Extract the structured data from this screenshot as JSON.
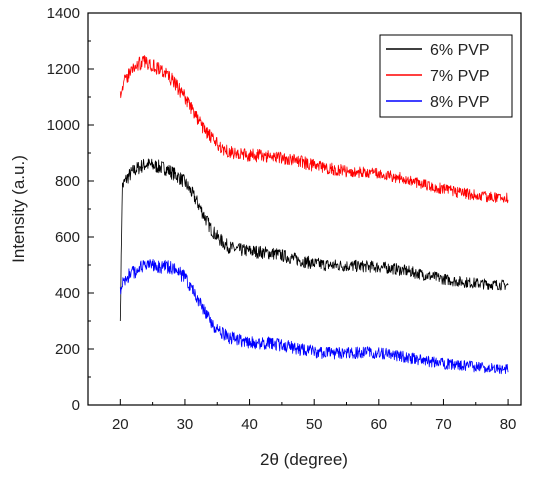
{
  "chart_data": {
    "type": "line",
    "xlabel": "2θ (degree)",
    "ylabel": "Intensity (a.u.)",
    "xlim": [
      15,
      82
    ],
    "ylim": [
      0,
      1400
    ],
    "x_ticks": [
      20,
      30,
      40,
      50,
      60,
      70,
      80
    ],
    "y_ticks": [
      0,
      200,
      400,
      600,
      800,
      1000,
      1200,
      1400
    ],
    "legend_position": "top-right",
    "grid": false,
    "series": [
      {
        "name": "6% PVP",
        "color": "#000000",
        "points": [
          [
            20,
            300
          ],
          [
            20.3,
            780
          ],
          [
            21,
            810
          ],
          [
            22,
            835
          ],
          [
            23,
            850
          ],
          [
            24,
            860
          ],
          [
            25,
            855
          ],
          [
            26,
            850
          ],
          [
            27,
            845
          ],
          [
            28,
            830
          ],
          [
            29,
            815
          ],
          [
            30,
            795
          ],
          [
            31,
            760
          ],
          [
            32,
            720
          ],
          [
            33,
            675
          ],
          [
            34,
            630
          ],
          [
            35,
            600
          ],
          [
            36,
            578
          ],
          [
            37,
            562
          ],
          [
            38,
            555
          ],
          [
            40,
            550
          ],
          [
            42,
            545
          ],
          [
            44,
            540
          ],
          [
            46,
            528
          ],
          [
            48,
            515
          ],
          [
            50,
            505
          ],
          [
            52,
            500
          ],
          [
            55,
            497
          ],
          [
            58,
            495
          ],
          [
            60,
            493
          ],
          [
            62,
            488
          ],
          [
            64,
            480
          ],
          [
            66,
            470
          ],
          [
            68,
            460
          ],
          [
            70,
            450
          ],
          [
            72,
            442
          ],
          [
            74,
            437
          ],
          [
            76,
            433
          ],
          [
            78,
            430
          ],
          [
            80,
            428
          ]
        ]
      },
      {
        "name": "7% PVP",
        "color": "#ff0000",
        "points": [
          [
            20,
            1120
          ],
          [
            21,
            1170
          ],
          [
            22,
            1205
          ],
          [
            23,
            1220
          ],
          [
            24,
            1225
          ],
          [
            25,
            1215
          ],
          [
            26,
            1200
          ],
          [
            27,
            1185
          ],
          [
            28,
            1160
          ],
          [
            29,
            1130
          ],
          [
            30,
            1100
          ],
          [
            31,
            1060
          ],
          [
            32,
            1020
          ],
          [
            33,
            985
          ],
          [
            34,
            955
          ],
          [
            35,
            930
          ],
          [
            36,
            915
          ],
          [
            37,
            905
          ],
          [
            38,
            897
          ],
          [
            40,
            892
          ],
          [
            42,
            890
          ],
          [
            44,
            888
          ],
          [
            46,
            880
          ],
          [
            48,
            868
          ],
          [
            50,
            855
          ],
          [
            52,
            845
          ],
          [
            55,
            835
          ],
          [
            58,
            828
          ],
          [
            60,
            825
          ],
          [
            62,
            818
          ],
          [
            64,
            808
          ],
          [
            66,
            795
          ],
          [
            68,
            782
          ],
          [
            70,
            770
          ],
          [
            72,
            760
          ],
          [
            74,
            752
          ],
          [
            76,
            746
          ],
          [
            78,
            742
          ],
          [
            80,
            738
          ]
        ]
      },
      {
        "name": "8% PVP",
        "color": "#0000ff",
        "points": [
          [
            20,
            420
          ],
          [
            21,
            455
          ],
          [
            22,
            475
          ],
          [
            23,
            488
          ],
          [
            24,
            495
          ],
          [
            25,
            498
          ],
          [
            26,
            496
          ],
          [
            27,
            493
          ],
          [
            28,
            488
          ],
          [
            29,
            475
          ],
          [
            30,
            455
          ],
          [
            31,
            420
          ],
          [
            32,
            380
          ],
          [
            33,
            335
          ],
          [
            34,
            295
          ],
          [
            35,
            268
          ],
          [
            36,
            250
          ],
          [
            37,
            240
          ],
          [
            38,
            232
          ],
          [
            40,
            225
          ],
          [
            42,
            222
          ],
          [
            44,
            218
          ],
          [
            46,
            208
          ],
          [
            48,
            198
          ],
          [
            50,
            190
          ],
          [
            52,
            185
          ],
          [
            55,
            185
          ],
          [
            58,
            188
          ],
          [
            60,
            186
          ],
          [
            62,
            180
          ],
          [
            64,
            172
          ],
          [
            66,
            163
          ],
          [
            68,
            155
          ],
          [
            70,
            148
          ],
          [
            72,
            142
          ],
          [
            74,
            138
          ],
          [
            76,
            134
          ],
          [
            78,
            131
          ],
          [
            80,
            128
          ]
        ]
      }
    ]
  }
}
